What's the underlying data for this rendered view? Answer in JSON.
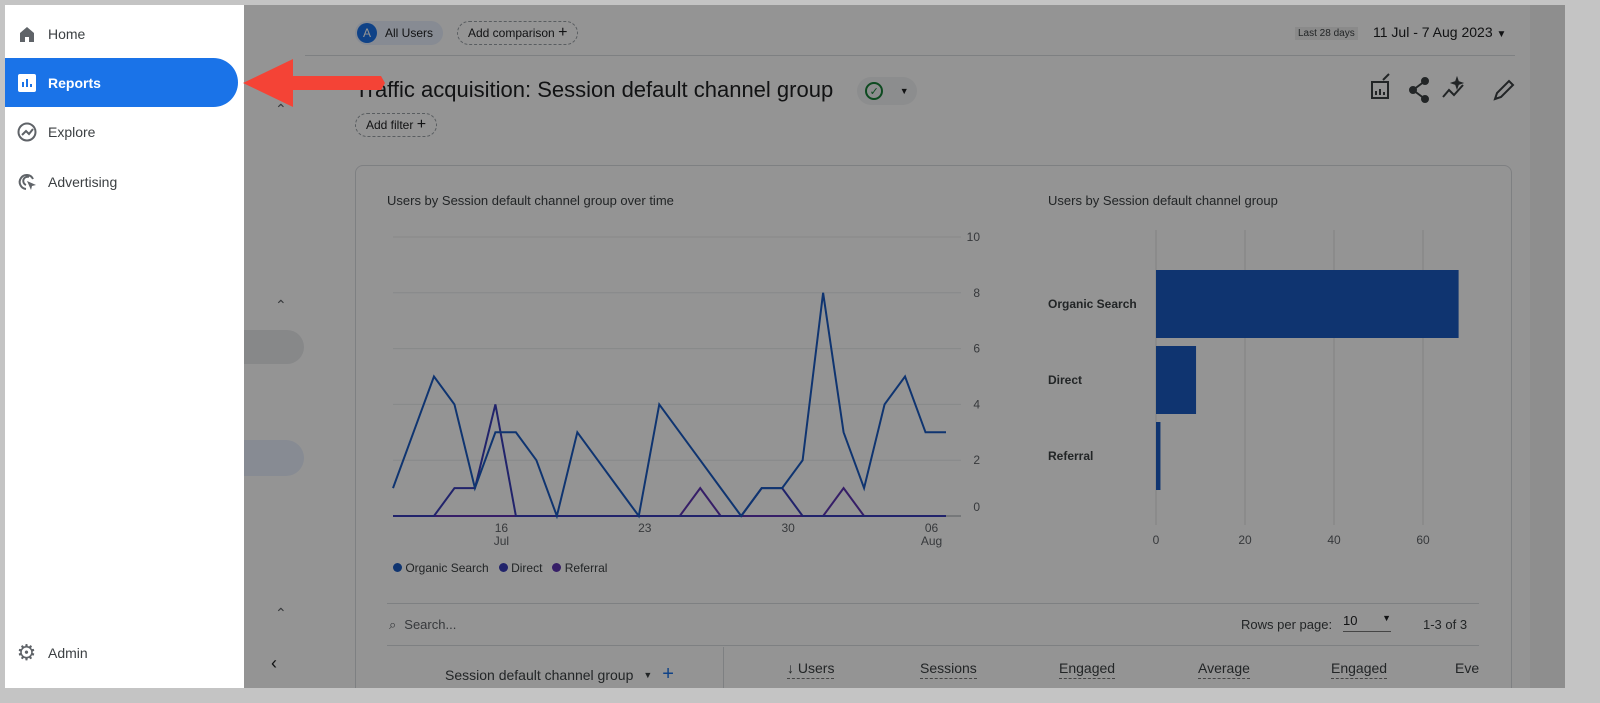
{
  "sidebar": {
    "items": [
      {
        "label": "Home",
        "icon": "home-icon"
      },
      {
        "label": "Reports",
        "icon": "bar-chart-icon",
        "active": true
      },
      {
        "label": "Explore",
        "icon": "explore-icon"
      },
      {
        "label": "Advertising",
        "icon": "advertising-icon"
      }
    ],
    "admin": {
      "label": "Admin",
      "icon": "gear-icon"
    }
  },
  "header": {
    "segment_badge": "A",
    "segment": "All Users",
    "add_comparison": "Add comparison",
    "date_range_label": "Last 28 days",
    "date_range": "11 Jul - 7 Aug 2023"
  },
  "report": {
    "title": "Traffic acquisition: Session default channel group",
    "add_filter": "Add filter"
  },
  "colors": {
    "accent": "#1a73e8",
    "organic": "#1a5bc2",
    "direct": "#3a3db8",
    "referral": "#5e35b1",
    "arrow": "#f44336"
  },
  "chart_data": [
    {
      "type": "line",
      "title": "Users by Session default channel group over time",
      "x": [
        "11 Jul",
        "12 Jul",
        "13 Jul",
        "14 Jul",
        "15 Jul",
        "16 Jul",
        "17 Jul",
        "18 Jul",
        "19 Jul",
        "20 Jul",
        "21 Jul",
        "22 Jul",
        "23 Jul",
        "24 Jul",
        "25 Jul",
        "26 Jul",
        "27 Jul",
        "28 Jul",
        "29 Jul",
        "30 Jul",
        "31 Jul",
        "01 Aug",
        "02 Aug",
        "03 Aug",
        "04 Aug",
        "05 Aug",
        "06 Aug",
        "07 Aug"
      ],
      "x_tick_labels": [
        {
          "index": 5,
          "day": "16",
          "month": "Jul"
        },
        {
          "index": 12,
          "day": "23",
          "month": ""
        },
        {
          "index": 19,
          "day": "30",
          "month": ""
        },
        {
          "index": 26,
          "day": "06",
          "month": "Aug"
        }
      ],
      "y_ticks": [
        "0",
        "2",
        "4",
        "6",
        "8",
        "10"
      ],
      "ylim": [
        0,
        10
      ],
      "grid": true,
      "legend": "bottom",
      "series": [
        {
          "name": "Organic Search",
          "values": [
            1,
            3,
            5,
            4,
            1,
            3,
            3,
            2,
            0,
            3,
            2,
            1,
            0,
            4,
            3,
            2,
            1,
            0,
            1,
            1,
            2,
            8,
            3,
            1,
            4,
            5,
            3,
            3
          ]
        },
        {
          "name": "Direct",
          "values": [
            0,
            0,
            0,
            1,
            1,
            4,
            0,
            0,
            0,
            0,
            0,
            0,
            0,
            0,
            0,
            0,
            0,
            0,
            1,
            1,
            0,
            0,
            0,
            0,
            0,
            0,
            0,
            0
          ]
        },
        {
          "name": "Referral",
          "values": [
            0,
            0,
            0,
            0,
            0,
            0,
            0,
            0,
            0,
            0,
            0,
            0,
            0,
            0,
            0,
            1,
            0,
            0,
            0,
            0,
            0,
            0,
            1,
            0,
            0,
            0,
            0,
            0
          ]
        }
      ]
    },
    {
      "type": "bar",
      "orientation": "horizontal",
      "title": "Users by Session default channel group",
      "categories": [
        "Organic Search",
        "Direct",
        "Referral"
      ],
      "values": [
        68,
        9,
        1
      ],
      "x_ticks": [
        "0",
        "20",
        "40",
        "60"
      ],
      "xlim": [
        0,
        70
      ],
      "grid": true
    }
  ],
  "table": {
    "search_placeholder": "Search...",
    "rows_per_page_label": "Rows per page:",
    "rows_per_page": "10",
    "pagination": "1-3 of 3",
    "dimension_header": "Session default channel group",
    "columns": [
      "↓ Users",
      "Sessions",
      "Engaged",
      "Average",
      "Engaged",
      "Eve"
    ]
  }
}
